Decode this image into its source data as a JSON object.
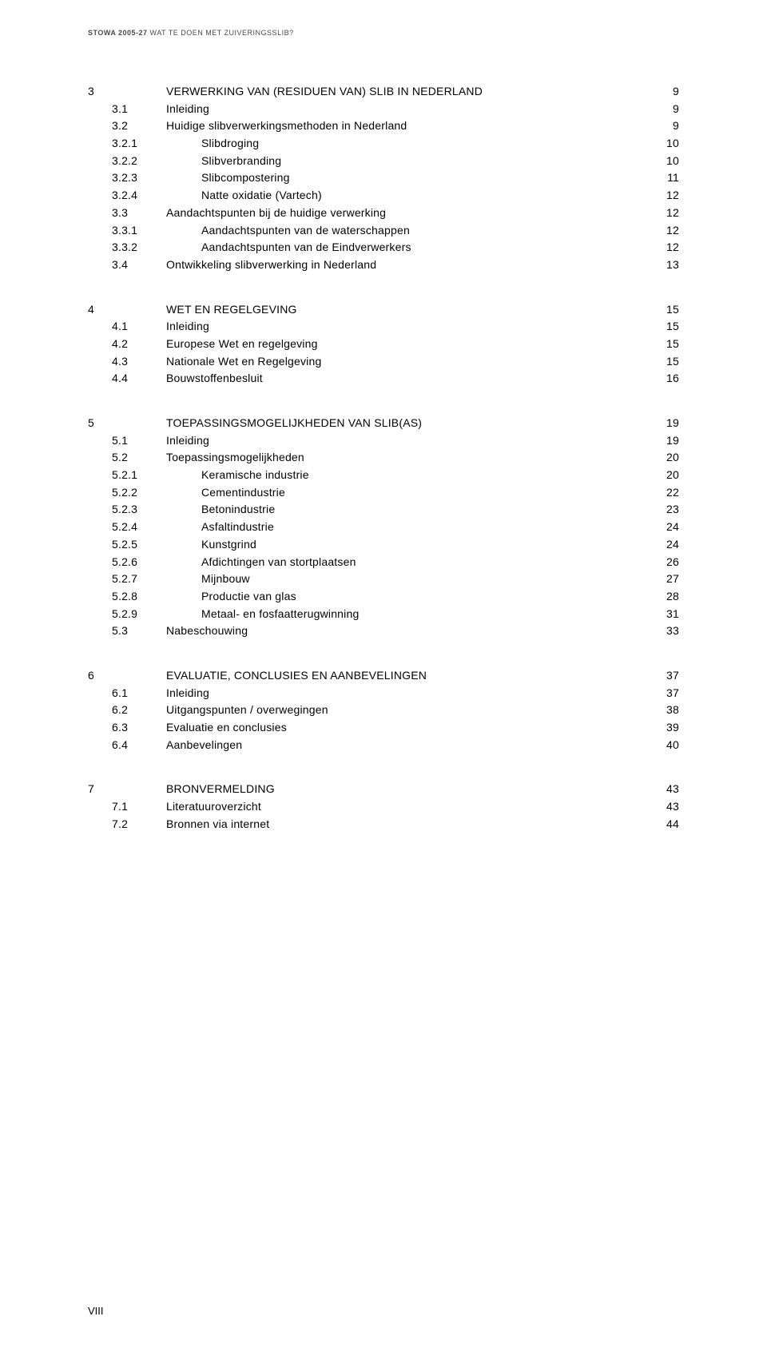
{
  "header": {
    "bold": "STOWA 2005-27",
    "rest": " WAT TE DOEN MET ZUIVERINGSSLIB?"
  },
  "toc": [
    {
      "chapter": "3",
      "rows": [
        {
          "num": "",
          "title": "VERWERKING VAN (RESIDUEN VAN) SLIB IN NEDERLAND",
          "page": "9",
          "heading": true
        },
        {
          "num": "3.1",
          "title": "Inleiding",
          "page": "9"
        },
        {
          "num": "3.2",
          "title": "Huidige slibverwerkingsmethoden in Nederland",
          "page": "9"
        },
        {
          "num": "3.2.1",
          "title": "Slibdroging",
          "page": "10",
          "indent": 1
        },
        {
          "num": "3.2.2",
          "title": "Slibverbranding",
          "page": "10",
          "indent": 1
        },
        {
          "num": "3.2.3",
          "title": "Slibcompostering",
          "page": "11",
          "indent": 1
        },
        {
          "num": "3.2.4",
          "title": "Natte oxidatie (Vartech)",
          "page": "12",
          "indent": 1
        },
        {
          "num": "3.3",
          "title": "Aandachtspunten bij de huidige verwerking",
          "page": "12"
        },
        {
          "num": "3.3.1",
          "title": "Aandachtspunten van de waterschappen",
          "page": "12",
          "indent": 1
        },
        {
          "num": "3.3.2",
          "title": "Aandachtspunten van de Eindverwerkers",
          "page": "12",
          "indent": 1
        },
        {
          "num": "3.4",
          "title": "Ontwikkeling slibverwerking in Nederland",
          "page": "13"
        }
      ]
    },
    {
      "chapter": "4",
      "rows": [
        {
          "num": "",
          "title": "WET EN REGELGEVING",
          "page": "15",
          "heading": true
        },
        {
          "num": "4.1",
          "title": "Inleiding",
          "page": "15"
        },
        {
          "num": "4.2",
          "title": "Europese Wet en regelgeving",
          "page": "15"
        },
        {
          "num": "4.3",
          "title": "Nationale Wet en Regelgeving",
          "page": "15"
        },
        {
          "num": "4.4",
          "title": "Bouwstoffenbesluit",
          "page": "16"
        }
      ]
    },
    {
      "chapter": "5",
      "rows": [
        {
          "num": "",
          "title": "TOEPASSINGSMOGELIJKHEDEN VAN SLIB(AS)",
          "page": "19",
          "heading": true
        },
        {
          "num": "5.1",
          "title": "Inleiding",
          "page": "19"
        },
        {
          "num": "5.2",
          "title": "Toepassingsmogelijkheden",
          "page": "20"
        },
        {
          "num": "5.2.1",
          "title": "Keramische industrie",
          "page": "20",
          "indent": 1
        },
        {
          "num": "5.2.2",
          "title": "Cementindustrie",
          "page": "22",
          "indent": 1
        },
        {
          "num": "5.2.3",
          "title": "Betonindustrie",
          "page": "23",
          "indent": 1
        },
        {
          "num": "5.2.4",
          "title": "Asfaltindustrie",
          "page": "24",
          "indent": 1
        },
        {
          "num": "5.2.5",
          "title": "Kunstgrind",
          "page": "24",
          "indent": 1
        },
        {
          "num": "5.2.6",
          "title": "Afdichtingen van stortplaatsen",
          "page": "26",
          "indent": 1
        },
        {
          "num": "5.2.7",
          "title": "Mijnbouw",
          "page": "27",
          "indent": 1
        },
        {
          "num": "5.2.8",
          "title": "Productie van glas",
          "page": "28",
          "indent": 1
        },
        {
          "num": "5.2.9",
          "title": "Metaal- en fosfaatterugwinning",
          "page": "31",
          "indent": 1
        },
        {
          "num": "5.3",
          "title": "Nabeschouwing",
          "page": "33"
        }
      ]
    },
    {
      "chapter": "6",
      "rows": [
        {
          "num": "",
          "title": "EVALUATIE, CONCLUSIES EN AANBEVELINGEN",
          "page": "37",
          "heading": true
        },
        {
          "num": "6.1",
          "title": "Inleiding",
          "page": "37"
        },
        {
          "num": "6.2",
          "title": "Uitgangspunten / overwegingen",
          "page": "38"
        },
        {
          "num": "6.3",
          "title": "Evaluatie en conclusies",
          "page": "39"
        },
        {
          "num": "6.4",
          "title": "Aanbevelingen",
          "page": "40"
        }
      ]
    },
    {
      "chapter": "7",
      "rows": [
        {
          "num": "",
          "title": "BRONVERMELDING",
          "page": "43",
          "heading": true
        },
        {
          "num": "7.1",
          "title": "Literatuuroverzicht",
          "page": "43"
        },
        {
          "num": "7.2",
          "title": "Bronnen via internet",
          "page": "44"
        }
      ]
    }
  ],
  "footer": {
    "pageNumber": "VIII"
  },
  "style": {
    "textColor": "#000000",
    "headerColor": "#4a4a4a",
    "background": "#ffffff",
    "fontSizeBody": 14,
    "fontSizeHeader": 9
  }
}
